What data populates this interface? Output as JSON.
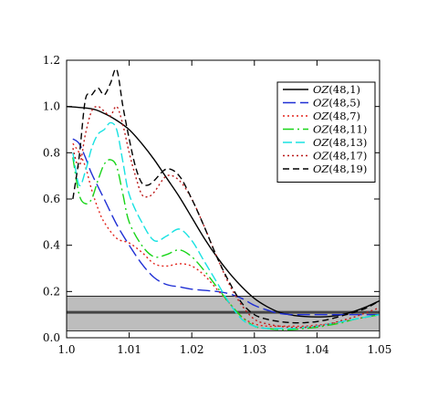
{
  "chart_data": {
    "type": "line",
    "title": "",
    "xlabel": "",
    "ylabel": "",
    "xlim": [
      1.0,
      1.05
    ],
    "ylim": [
      0.0,
      1.2
    ],
    "x_ticks": [
      "1.0",
      "1.01",
      "1.02",
      "1.03",
      "1.04",
      "1.05"
    ],
    "y_ticks": [
      "0.0",
      "0.2",
      "0.4",
      "0.6",
      "0.8",
      "1.0",
      "1.2"
    ],
    "legend_position": "top-right",
    "grid": false,
    "band": {
      "y_low": 0.03,
      "y_high": 0.18,
      "y_center": 0.11,
      "color": "#bdbdbd"
    },
    "series": [
      {
        "name_prefix": "OZ",
        "name_args": "(48,1)",
        "color": "#000000",
        "dash": "",
        "x": [
          1.0,
          1.004,
          1.006,
          1.008,
          1.01,
          1.012,
          1.014,
          1.016,
          1.018,
          1.02,
          1.022,
          1.024,
          1.026,
          1.028,
          1.03,
          1.032,
          1.034,
          1.036,
          1.038,
          1.04,
          1.042,
          1.044,
          1.046,
          1.048,
          1.05
        ],
        "y": [
          1.0,
          0.99,
          0.97,
          0.94,
          0.9,
          0.84,
          0.77,
          0.69,
          0.61,
          0.52,
          0.43,
          0.35,
          0.28,
          0.22,
          0.17,
          0.135,
          0.11,
          0.098,
          0.092,
          0.09,
          0.092,
          0.1,
          0.115,
          0.135,
          0.16
        ]
      },
      {
        "name_prefix": "OZ",
        "name_args": "(48,5)",
        "color": "#1f2fd4",
        "dash": "14,5",
        "x": [
          1.001,
          1.002,
          1.003,
          1.004,
          1.006,
          1.008,
          1.01,
          1.012,
          1.014,
          1.016,
          1.018,
          1.02,
          1.022,
          1.024,
          1.026,
          1.028,
          1.03,
          1.032,
          1.034,
          1.036,
          1.038,
          1.04,
          1.042,
          1.044,
          1.046,
          1.048,
          1.05
        ],
        "y": [
          0.86,
          0.84,
          0.78,
          0.71,
          0.6,
          0.49,
          0.4,
          0.32,
          0.26,
          0.23,
          0.22,
          0.21,
          0.205,
          0.2,
          0.19,
          0.17,
          0.14,
          0.12,
          0.105,
          0.1,
          0.1,
          0.1,
          0.1,
          0.1,
          0.1,
          0.1,
          0.1
        ]
      },
      {
        "name_prefix": "OZ",
        "name_args": "(48,7)",
        "color": "#e3241c",
        "dash": "2,3",
        "x": [
          1.001,
          1.002,
          1.003,
          1.004,
          1.005,
          1.006,
          1.008,
          1.01,
          1.012,
          1.014,
          1.016,
          1.018,
          1.02,
          1.022,
          1.024,
          1.026,
          1.028,
          1.03,
          1.032,
          1.034,
          1.036,
          1.038,
          1.04,
          1.042,
          1.044,
          1.046,
          1.048,
          1.05
        ],
        "y": [
          0.84,
          0.8,
          0.74,
          0.64,
          0.56,
          0.5,
          0.43,
          0.41,
          0.37,
          0.32,
          0.31,
          0.32,
          0.31,
          0.27,
          0.21,
          0.15,
          0.09,
          0.06,
          0.05,
          0.05,
          0.05,
          0.05,
          0.055,
          0.06,
          0.07,
          0.08,
          0.09,
          0.1
        ]
      },
      {
        "name_prefix": "OZ",
        "name_args": "(48,11)",
        "color": "#19d519",
        "dash": "12,4,2,4",
        "x": [
          1.001,
          1.002,
          1.003,
          1.004,
          1.005,
          1.006,
          1.007,
          1.008,
          1.009,
          1.01,
          1.012,
          1.014,
          1.016,
          1.018,
          1.02,
          1.022,
          1.024,
          1.026,
          1.028,
          1.03,
          1.032,
          1.034,
          1.036,
          1.038,
          1.04,
          1.042,
          1.044,
          1.046,
          1.048,
          1.05
        ],
        "y": [
          0.78,
          0.62,
          0.58,
          0.6,
          0.68,
          0.75,
          0.77,
          0.74,
          0.62,
          0.5,
          0.4,
          0.35,
          0.36,
          0.38,
          0.35,
          0.29,
          0.22,
          0.15,
          0.09,
          0.05,
          0.04,
          0.035,
          0.035,
          0.04,
          0.045,
          0.055,
          0.065,
          0.08,
          0.09,
          0.1
        ]
      },
      {
        "name_prefix": "OZ",
        "name_args": "(48,13)",
        "color": "#18e2e2",
        "dash": "10,4",
        "x": [
          1.001,
          1.002,
          1.003,
          1.004,
          1.005,
          1.006,
          1.007,
          1.008,
          1.009,
          1.01,
          1.012,
          1.014,
          1.016,
          1.018,
          1.02,
          1.022,
          1.024,
          1.026,
          1.028,
          1.03,
          1.032,
          1.034,
          1.036,
          1.038,
          1.04,
          1.042,
          1.044,
          1.046,
          1.048,
          1.05
        ],
        "y": [
          0.8,
          0.66,
          0.72,
          0.82,
          0.88,
          0.9,
          0.93,
          0.9,
          0.76,
          0.62,
          0.5,
          0.42,
          0.44,
          0.47,
          0.42,
          0.33,
          0.24,
          0.15,
          0.08,
          0.05,
          0.04,
          0.04,
          0.04,
          0.045,
          0.05,
          0.06,
          0.07,
          0.08,
          0.09,
          0.1
        ]
      },
      {
        "name_prefix": "OZ",
        "name_args": "(48,17)",
        "color": "#bb1a1a",
        "dash": "2,3",
        "x": [
          1.001,
          1.002,
          1.003,
          1.004,
          1.005,
          1.006,
          1.007,
          1.008,
          1.009,
          1.01,
          1.011,
          1.012,
          1.013,
          1.014,
          1.016,
          1.018,
          1.02,
          1.022,
          1.024,
          1.026,
          1.028,
          1.03,
          1.032,
          1.034,
          1.036,
          1.038,
          1.04,
          1.042,
          1.044,
          1.046,
          1.048,
          1.05
        ],
        "y": [
          0.82,
          0.74,
          0.88,
          0.98,
          1.0,
          0.98,
          0.96,
          1.0,
          0.92,
          0.8,
          0.7,
          0.62,
          0.61,
          0.63,
          0.7,
          0.68,
          0.6,
          0.48,
          0.35,
          0.23,
          0.14,
          0.08,
          0.06,
          0.05,
          0.045,
          0.045,
          0.05,
          0.06,
          0.075,
          0.09,
          0.11,
          0.13
        ]
      },
      {
        "name_prefix": "OZ",
        "name_args": "(48,19)",
        "color": "#000000",
        "dash": "7,4",
        "x": [
          1.001,
          1.002,
          1.003,
          1.004,
          1.005,
          1.006,
          1.007,
          1.008,
          1.009,
          1.01,
          1.011,
          1.012,
          1.013,
          1.014,
          1.016,
          1.018,
          1.02,
          1.022,
          1.024,
          1.026,
          1.028,
          1.03,
          1.032,
          1.034,
          1.036,
          1.038,
          1.04,
          1.042,
          1.044,
          1.046,
          1.048,
          1.05
        ],
        "y": [
          0.6,
          0.78,
          1.03,
          1.05,
          1.08,
          1.05,
          1.1,
          1.16,
          1.0,
          0.86,
          0.74,
          0.67,
          0.66,
          0.68,
          0.73,
          0.7,
          0.6,
          0.48,
          0.35,
          0.24,
          0.15,
          0.1,
          0.08,
          0.07,
          0.065,
          0.065,
          0.07,
          0.08,
          0.095,
          0.11,
          0.13,
          0.16
        ]
      }
    ]
  }
}
